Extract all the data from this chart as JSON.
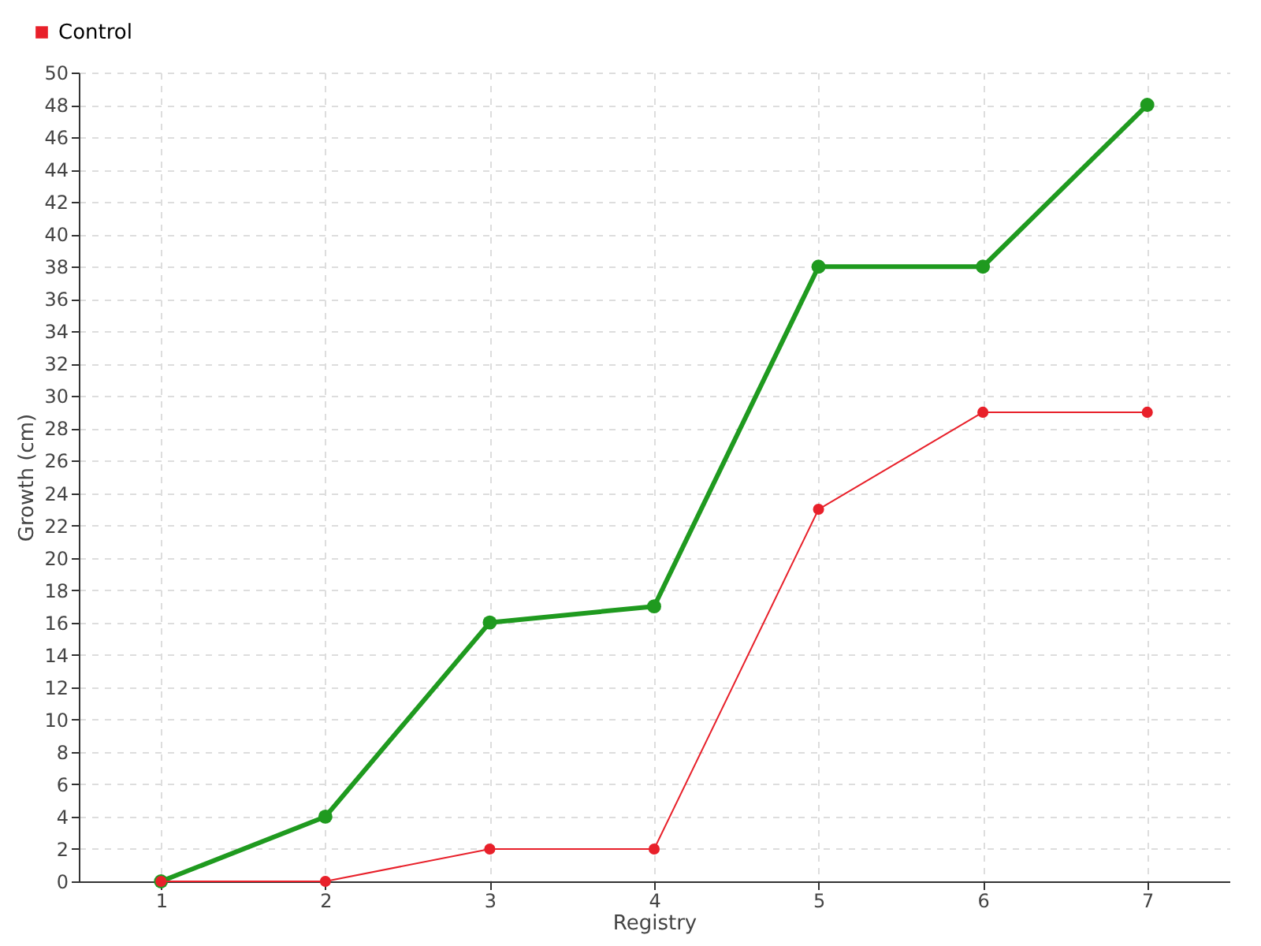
{
  "chart_data": {
    "type": "line",
    "xlabel": "Registry",
    "ylabel": "Growth (cm)",
    "x": [
      1,
      2,
      3,
      4,
      5,
      6,
      7
    ],
    "series": [
      {
        "color": "#1f9a1f",
        "values": [
          0,
          4,
          16,
          17,
          38,
          38,
          48
        ]
      },
      {
        "name": "Control",
        "color": "#e8202a",
        "values": [
          0,
          0,
          2,
          2,
          23,
          29,
          29
        ]
      }
    ],
    "xlim": [
      0.5,
      7.5
    ],
    "xticks": [
      1,
      2,
      3,
      4,
      5,
      6,
      7
    ],
    "ylim": [
      0,
      50
    ],
    "yticks": [
      0,
      2,
      4,
      6,
      8,
      10,
      12,
      14,
      16,
      18,
      20,
      22,
      24,
      26,
      28,
      30,
      32,
      34,
      36,
      38,
      40,
      42,
      44,
      46,
      48,
      50
    ],
    "grid": true,
    "legend": "top left",
    "marker": "circle",
    "line_style": "solid"
  }
}
